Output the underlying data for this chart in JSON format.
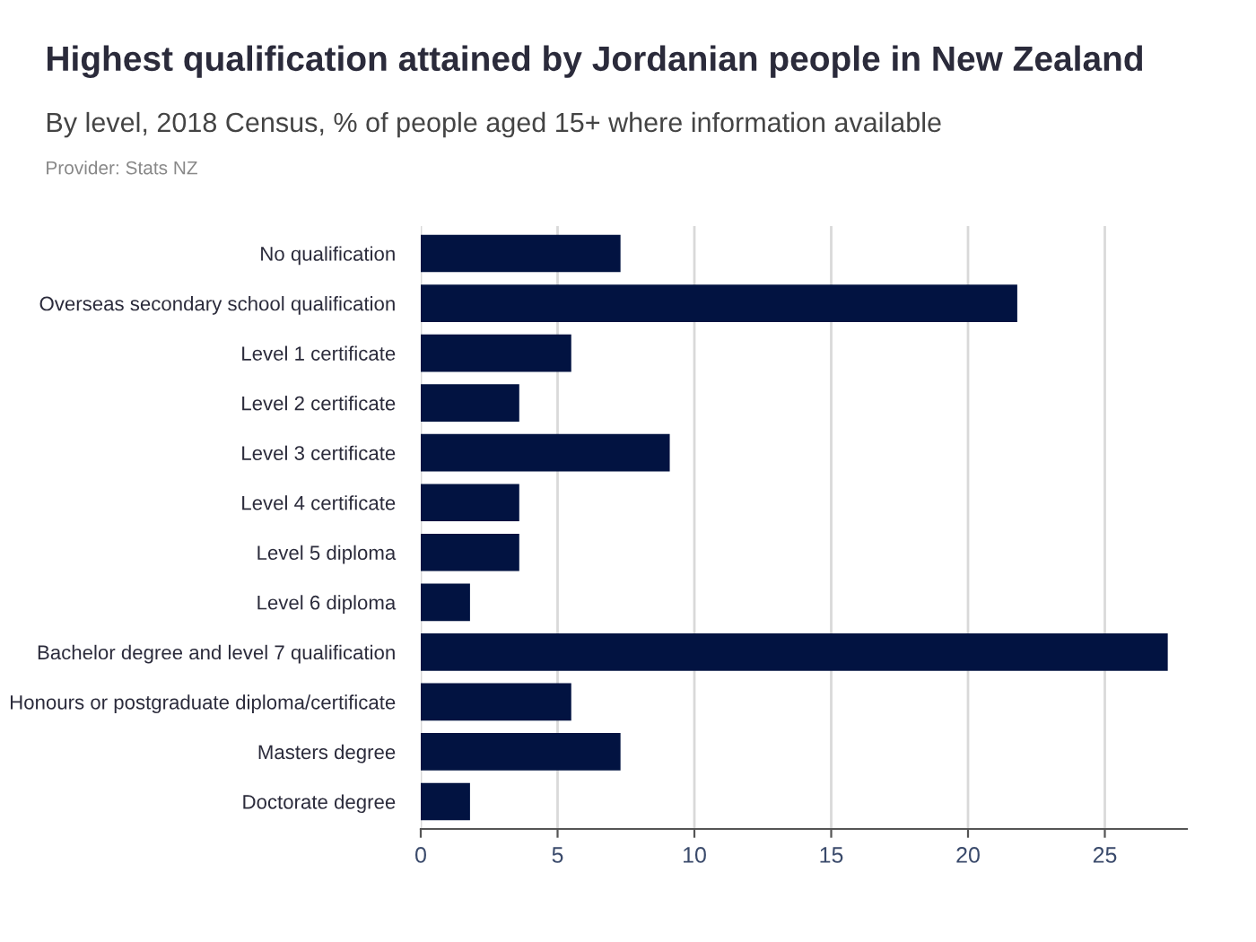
{
  "chart_data": {
    "type": "bar",
    "orientation": "horizontal",
    "title": "Highest qualification attained by Jordanian people in New Zealand",
    "subtitle": "By level, 2018 Census, % of people aged 15+ where information available",
    "annotations": [
      "Provider: Stats NZ"
    ],
    "categories": [
      "No qualification",
      "Overseas secondary school qualification",
      "Level 1 certificate",
      "Level 2 certificate",
      "Level 3 certificate",
      "Level 4 certificate",
      "Level 5 diploma",
      "Level 6 diploma",
      "Bachelor degree and level 7 qualification",
      "Honours or postgraduate diploma/certificate",
      "Masters degree",
      "Doctorate degree"
    ],
    "values": [
      7.3,
      21.8,
      5.5,
      3.6,
      9.1,
      3.6,
      3.6,
      1.8,
      27.3,
      5.5,
      7.3,
      1.8
    ],
    "color": "#021341",
    "xlim": [
      0,
      28
    ],
    "xticks": [
      0,
      5,
      10,
      15,
      20,
      25
    ],
    "grid": "x",
    "legend": false
  }
}
